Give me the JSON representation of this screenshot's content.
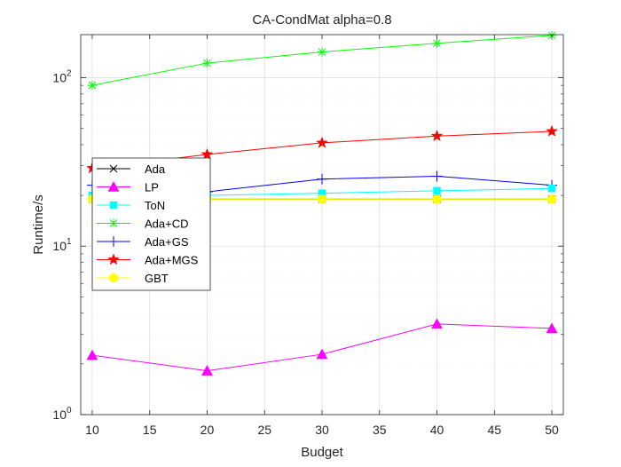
{
  "chart_data": {
    "type": "line",
    "title": "CA-CondMat alpha=0.8",
    "xlabel": "Budget",
    "ylabel": "Runtime/s",
    "xlim": [
      9,
      51
    ],
    "ylim": [
      1,
      180
    ],
    "yscale": "log",
    "grid": true,
    "x": [
      10,
      20,
      30,
      40,
      50
    ],
    "x_ticks": [
      "10",
      "15",
      "20",
      "25",
      "30",
      "35",
      "40",
      "45",
      "50"
    ],
    "y_ticks": [
      {
        "label_base": "10",
        "label_exp": "0"
      },
      {
        "label_base": "10",
        "label_exp": "1"
      },
      {
        "label_base": "10",
        "label_exp": "2"
      }
    ],
    "legend_position": "middle-left",
    "series": [
      {
        "name": "Ada",
        "color": "#000000",
        "marker": "x",
        "values": [
          19,
          19,
          19,
          19,
          19
        ]
      },
      {
        "name": "LP",
        "color": "#ff00ff",
        "marker": "triangle",
        "values": [
          2.25,
          1.82,
          2.28,
          3.45,
          3.25
        ]
      },
      {
        "name": "ToN",
        "color": "#00ffff",
        "marker": "square",
        "values": [
          20,
          20,
          20.6,
          21.3,
          22
        ]
      },
      {
        "name": "Ada+CD",
        "color": "#00ff00",
        "marker": "asterisk",
        "values": [
          90,
          122,
          142,
          160,
          178
        ]
      },
      {
        "name": "Ada+GS",
        "color": "#0000ff",
        "marker": "plus",
        "values": [
          23,
          21,
          25,
          26,
          23
        ]
      },
      {
        "name": "Ada+MGS",
        "color": "#ff0000",
        "marker": "star",
        "values": [
          29,
          35,
          41,
          45,
          48
        ]
      },
      {
        "name": "GBT",
        "color": "#ffff00",
        "marker": "circle",
        "values": [
          19,
          19,
          19,
          19,
          19
        ]
      }
    ]
  }
}
